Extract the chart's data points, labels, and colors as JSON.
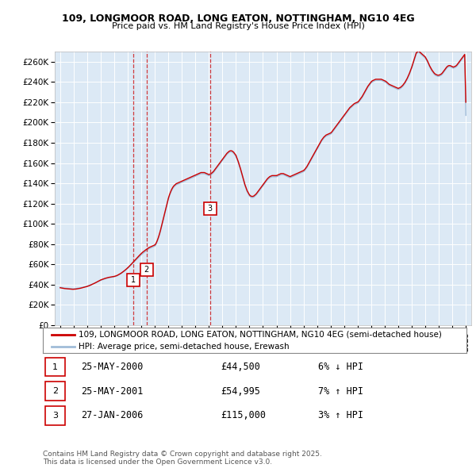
{
  "title1": "109, LONGMOOR ROAD, LONG EATON, NOTTINGHAM, NG10 4EG",
  "title2": "Price paid vs. HM Land Registry's House Price Index (HPI)",
  "ylim": [
    0,
    270000
  ],
  "yticks": [
    0,
    20000,
    40000,
    60000,
    80000,
    100000,
    120000,
    140000,
    160000,
    180000,
    200000,
    220000,
    240000,
    260000
  ],
  "ytick_labels": [
    "£0",
    "£20K",
    "£40K",
    "£60K",
    "£80K",
    "£100K",
    "£120K",
    "£140K",
    "£160K",
    "£180K",
    "£200K",
    "£220K",
    "£240K",
    "£260K"
  ],
  "xlim_start": 1994.6,
  "xlim_end": 2025.4,
  "bg_color": "#dce9f5",
  "grid_color": "#ffffff",
  "red_color": "#cc0000",
  "blue_color": "#a0bcd8",
  "sales": [
    {
      "year": 2000.38,
      "price": 44500,
      "label": "1"
    },
    {
      "year": 2001.38,
      "price": 54995,
      "label": "2"
    },
    {
      "year": 2006.07,
      "price": 115000,
      "label": "3"
    }
  ],
  "sale_dates": [
    "25-MAY-2000",
    "25-MAY-2001",
    "27-JAN-2006"
  ],
  "sale_prices": [
    "£44,500",
    "£54,995",
    "£115,000"
  ],
  "sale_pcts": [
    "6% ↓ HPI",
    "7% ↑ HPI",
    "3% ↑ HPI"
  ],
  "legend_line1": "109, LONGMOOR ROAD, LONG EATON, NOTTINGHAM, NG10 4EG (semi-detached house)",
  "legend_line2": "HPI: Average price, semi-detached house, Erewash",
  "footnote": "Contains HM Land Registry data © Crown copyright and database right 2025.\nThis data is licensed under the Open Government Licence v3.0.",
  "hpi_years": [
    1995.0,
    1995.083,
    1995.167,
    1995.25,
    1995.333,
    1995.417,
    1995.5,
    1995.583,
    1995.667,
    1995.75,
    1995.833,
    1995.917,
    1996.0,
    1996.083,
    1996.167,
    1996.25,
    1996.333,
    1996.417,
    1996.5,
    1996.583,
    1996.667,
    1996.75,
    1996.833,
    1996.917,
    1997.0,
    1997.083,
    1997.167,
    1997.25,
    1997.333,
    1997.417,
    1997.5,
    1997.583,
    1997.667,
    1997.75,
    1997.833,
    1997.917,
    1998.0,
    1998.083,
    1998.167,
    1998.25,
    1998.333,
    1998.417,
    1998.5,
    1998.583,
    1998.667,
    1998.75,
    1998.833,
    1998.917,
    1999.0,
    1999.083,
    1999.167,
    1999.25,
    1999.333,
    1999.417,
    1999.5,
    1999.583,
    1999.667,
    1999.75,
    1999.833,
    1999.917,
    2000.0,
    2000.083,
    2000.167,
    2000.25,
    2000.333,
    2000.417,
    2000.5,
    2000.583,
    2000.667,
    2000.75,
    2000.833,
    2000.917,
    2001.0,
    2001.083,
    2001.167,
    2001.25,
    2001.333,
    2001.417,
    2001.5,
    2001.583,
    2001.667,
    2001.75,
    2001.833,
    2001.917,
    2002.0,
    2002.083,
    2002.167,
    2002.25,
    2002.333,
    2002.417,
    2002.5,
    2002.583,
    2002.667,
    2002.75,
    2002.833,
    2002.917,
    2003.0,
    2003.083,
    2003.167,
    2003.25,
    2003.333,
    2003.417,
    2003.5,
    2003.583,
    2003.667,
    2003.75,
    2003.833,
    2003.917,
    2004.0,
    2004.083,
    2004.167,
    2004.25,
    2004.333,
    2004.417,
    2004.5,
    2004.583,
    2004.667,
    2004.75,
    2004.833,
    2004.917,
    2005.0,
    2005.083,
    2005.167,
    2005.25,
    2005.333,
    2005.417,
    2005.5,
    2005.583,
    2005.667,
    2005.75,
    2005.833,
    2005.917,
    2006.0,
    2006.083,
    2006.167,
    2006.25,
    2006.333,
    2006.417,
    2006.5,
    2006.583,
    2006.667,
    2006.75,
    2006.833,
    2006.917,
    2007.0,
    2007.083,
    2007.167,
    2007.25,
    2007.333,
    2007.417,
    2007.5,
    2007.583,
    2007.667,
    2007.75,
    2007.833,
    2007.917,
    2008.0,
    2008.083,
    2008.167,
    2008.25,
    2008.333,
    2008.417,
    2008.5,
    2008.583,
    2008.667,
    2008.75,
    2008.833,
    2008.917,
    2009.0,
    2009.083,
    2009.167,
    2009.25,
    2009.333,
    2009.417,
    2009.5,
    2009.583,
    2009.667,
    2009.75,
    2009.833,
    2009.917,
    2010.0,
    2010.083,
    2010.167,
    2010.25,
    2010.333,
    2010.417,
    2010.5,
    2010.583,
    2010.667,
    2010.75,
    2010.833,
    2010.917,
    2011.0,
    2011.083,
    2011.167,
    2011.25,
    2011.333,
    2011.417,
    2011.5,
    2011.583,
    2011.667,
    2011.75,
    2011.833,
    2011.917,
    2012.0,
    2012.083,
    2012.167,
    2012.25,
    2012.333,
    2012.417,
    2012.5,
    2012.583,
    2012.667,
    2012.75,
    2012.833,
    2012.917,
    2013.0,
    2013.083,
    2013.167,
    2013.25,
    2013.333,
    2013.417,
    2013.5,
    2013.583,
    2013.667,
    2013.75,
    2013.833,
    2013.917,
    2014.0,
    2014.083,
    2014.167,
    2014.25,
    2014.333,
    2014.417,
    2014.5,
    2014.583,
    2014.667,
    2014.75,
    2014.833,
    2014.917,
    2015.0,
    2015.083,
    2015.167,
    2015.25,
    2015.333,
    2015.417,
    2015.5,
    2015.583,
    2015.667,
    2015.75,
    2015.833,
    2015.917,
    2016.0,
    2016.083,
    2016.167,
    2016.25,
    2016.333,
    2016.417,
    2016.5,
    2016.583,
    2016.667,
    2016.75,
    2016.833,
    2016.917,
    2017.0,
    2017.083,
    2017.167,
    2017.25,
    2017.333,
    2017.417,
    2017.5,
    2017.583,
    2017.667,
    2017.75,
    2017.833,
    2017.917,
    2018.0,
    2018.083,
    2018.167,
    2018.25,
    2018.333,
    2018.417,
    2018.5,
    2018.583,
    2018.667,
    2018.75,
    2018.833,
    2018.917,
    2019.0,
    2019.083,
    2019.167,
    2019.25,
    2019.333,
    2019.417,
    2019.5,
    2019.583,
    2019.667,
    2019.75,
    2019.833,
    2019.917,
    2020.0,
    2020.083,
    2020.167,
    2020.25,
    2020.333,
    2020.417,
    2020.5,
    2020.583,
    2020.667,
    2020.75,
    2020.833,
    2020.917,
    2021.0,
    2021.083,
    2021.167,
    2021.25,
    2021.333,
    2021.417,
    2021.5,
    2021.583,
    2021.667,
    2021.75,
    2021.833,
    2021.917,
    2022.0,
    2022.083,
    2022.167,
    2022.25,
    2022.333,
    2022.417,
    2022.5,
    2022.583,
    2022.667,
    2022.75,
    2022.833,
    2022.917,
    2023.0,
    2023.083,
    2023.167,
    2023.25,
    2023.333,
    2023.417,
    2023.5,
    2023.583,
    2023.667,
    2023.75,
    2023.833,
    2023.917,
    2024.0,
    2024.083,
    2024.167,
    2024.25,
    2024.333,
    2024.417,
    2024.5,
    2024.583,
    2024.667,
    2024.75,
    2024.833,
    2024.917,
    2025.0
  ],
  "hpi_values": [
    37500,
    37300,
    37100,
    36900,
    36700,
    36600,
    36500,
    36400,
    36300,
    36200,
    36100,
    36000,
    36000,
    36100,
    36200,
    36400,
    36600,
    36800,
    37000,
    37200,
    37400,
    37700,
    38000,
    38300,
    38600,
    39000,
    39400,
    39900,
    40300,
    40800,
    41300,
    41800,
    42300,
    42800,
    43300,
    43800,
    44300,
    44700,
    45100,
    45500,
    45900,
    46200,
    46500,
    46800,
    47000,
    47200,
    47400,
    47600,
    47800,
    48100,
    48500,
    49000,
    49600,
    50200,
    50900,
    51700,
    52500,
    53400,
    54300,
    55200,
    56200,
    57300,
    58400,
    59500,
    60700,
    61800,
    63000,
    64100,
    65200,
    66300,
    67400,
    68500,
    69500,
    70500,
    71400,
    72300,
    73100,
    74000,
    74800,
    75600,
    76100,
    76600,
    77100,
    77600,
    78100,
    79500,
    82000,
    85000,
    88500,
    92500,
    97000,
    101500,
    106000,
    110500,
    115000,
    119500,
    124000,
    127500,
    130500,
    133000,
    135000,
    136500,
    137500,
    138500,
    139000,
    139500,
    140000,
    140500,
    141000,
    141500,
    142000,
    142500,
    143000,
    143500,
    144000,
    144500,
    145000,
    145500,
    146000,
    146500,
    147000,
    147500,
    148000,
    148500,
    149000,
    149500,
    149500,
    149500,
    149500,
    149000,
    148500,
    148000,
    147500,
    148000,
    148500,
    149500,
    150500,
    152000,
    153500,
    155000,
    156500,
    158000,
    159500,
    161000,
    162500,
    164000,
    165500,
    167000,
    168500,
    169500,
    170500,
    171000,
    171000,
    170500,
    169500,
    168000,
    166500,
    163500,
    160500,
    157000,
    153500,
    149500,
    145500,
    141500,
    137500,
    134500,
    131500,
    129500,
    127500,
    126500,
    126000,
    126000,
    126500,
    127500,
    128500,
    130000,
    131500,
    133000,
    134500,
    136000,
    137500,
    139000,
    140500,
    142000,
    143500,
    144500,
    145500,
    146000,
    146500,
    146500,
    146500,
    146500,
    146500,
    147000,
    147500,
    148000,
    148500,
    148500,
    148500,
    148000,
    147500,
    147000,
    146500,
    146000,
    145500,
    146000,
    146500,
    147000,
    147500,
    148000,
    148500,
    149000,
    149500,
    150000,
    150500,
    151000,
    151500,
    152500,
    154000,
    155500,
    157500,
    159500,
    161500,
    163500,
    165500,
    167500,
    169500,
    171500,
    173500,
    175500,
    177500,
    179500,
    181500,
    183000,
    184500,
    185500,
    186500,
    187000,
    187500,
    188000,
    188500,
    189500,
    191000,
    192500,
    194000,
    195500,
    197000,
    198500,
    200000,
    201500,
    203000,
    204500,
    206000,
    207500,
    209000,
    210500,
    212000,
    213500,
    214500,
    215500,
    216500,
    217500,
    218000,
    218500,
    219000,
    220000,
    221500,
    223000,
    224500,
    226500,
    228500,
    230500,
    232500,
    234500,
    236000,
    237500,
    239000,
    240000,
    240500,
    241000,
    241500,
    241500,
    241500,
    241500,
    241500,
    241500,
    241000,
    240500,
    240000,
    239500,
    238500,
    237500,
    236500,
    236000,
    235500,
    235000,
    234500,
    234000,
    233500,
    233000,
    232500,
    233000,
    233500,
    234500,
    235500,
    237000,
    238500,
    240500,
    242500,
    245000,
    247500,
    250500,
    253500,
    257000,
    260500,
    264000,
    267500,
    268500,
    269500,
    268500,
    267500,
    266500,
    265500,
    264500,
    263500,
    261500,
    259500,
    257000,
    254500,
    252500,
    250500,
    249000,
    247500,
    246500,
    246000,
    245500,
    245500,
    246000,
    246500,
    247500,
    249000,
    250500,
    252000,
    253500,
    254500,
    255000,
    255000,
    254500,
    254000,
    253500,
    254000,
    254500,
    255500,
    257000,
    258500,
    260000,
    261500,
    263000,
    264500,
    266000,
    207000
  ],
  "red_values": [
    37000,
    36800,
    36600,
    36400,
    36200,
    36100,
    36000,
    35900,
    35800,
    35700,
    35600,
    35500,
    35500,
    35600,
    35700,
    35900,
    36100,
    36300,
    36500,
    36800,
    37100,
    37400,
    37700,
    38000,
    38300,
    38700,
    39100,
    39600,
    40100,
    40600,
    41100,
    41700,
    42300,
    42900,
    43500,
    44100,
    44700,
    45100,
    45500,
    45900,
    46300,
    46600,
    46900,
    47200,
    47400,
    47600,
    47800,
    48000,
    48200,
    48500,
    48900,
    49400,
    50000,
    50600,
    51300,
    52100,
    52900,
    53800,
    54700,
    55700,
    56700,
    57800,
    58900,
    60100,
    61300,
    62500,
    63700,
    64900,
    66100,
    67300,
    68500,
    69700,
    70800,
    71800,
    72700,
    73600,
    74400,
    75200,
    76000,
    76700,
    77200,
    77700,
    78200,
    78700,
    79200,
    80600,
    83100,
    86100,
    89600,
    93600,
    98100,
    102600,
    107100,
    111600,
    116100,
    120600,
    125100,
    128600,
    131600,
    134100,
    136100,
    137600,
    138600,
    139600,
    140100,
    140600,
    141100,
    141600,
    142100,
    142600,
    143100,
    143600,
    144100,
    144600,
    145100,
    145600,
    146100,
    146600,
    147100,
    147600,
    148100,
    148600,
    149100,
    149600,
    150100,
    150600,
    150600,
    150600,
    150600,
    150100,
    149600,
    149100,
    148600,
    149100,
    149600,
    150600,
    151600,
    153100,
    154600,
    156100,
    157600,
    159100,
    160600,
    162100,
    163600,
    165100,
    166600,
    168100,
    169600,
    170600,
    171600,
    172100,
    172100,
    171600,
    170600,
    169100,
    167600,
    164600,
    161600,
    158100,
    154600,
    150600,
    146600,
    142600,
    138600,
    135600,
    132600,
    130600,
    128600,
    127600,
    127100,
    127100,
    127600,
    128600,
    129600,
    131100,
    132600,
    134100,
    135600,
    137100,
    138600,
    140100,
    141600,
    143100,
    144600,
    145600,
    146600,
    147100,
    147600,
    147600,
    147600,
    147600,
    147600,
    148100,
    148600,
    149100,
    149600,
    149600,
    149600,
    149100,
    148600,
    148100,
    147600,
    147100,
    146600,
    147100,
    147600,
    148100,
    148600,
    149100,
    149600,
    150100,
    150600,
    151100,
    151600,
    152100,
    152600,
    153600,
    155100,
    156600,
    158600,
    160600,
    162600,
    164600,
    166600,
    168600,
    170600,
    172600,
    174600,
    176600,
    178600,
    180600,
    182600,
    184100,
    185600,
    186600,
    187600,
    188100,
    188600,
    189100,
    189600,
    190600,
    192100,
    193600,
    195100,
    196600,
    198100,
    199600,
    201100,
    202600,
    204100,
    205600,
    207100,
    208600,
    210100,
    211600,
    213100,
    214600,
    215600,
    216600,
    217600,
    218600,
    219100,
    219600,
    220100,
    221100,
    222600,
    224100,
    225600,
    227600,
    229600,
    231600,
    233600,
    235600,
    237100,
    238600,
    240100,
    241100,
    241600,
    242100,
    242600,
    242600,
    242600,
    242600,
    242600,
    242600,
    242100,
    241600,
    241100,
    240600,
    239600,
    238600,
    237600,
    237100,
    236600,
    236100,
    235600,
    235100,
    234600,
    234100,
    233600,
    234100,
    234600,
    235600,
    236600,
    238100,
    239600,
    241600,
    243600,
    246100,
    248600,
    251600,
    254600,
    258100,
    261600,
    265100,
    268600,
    269600,
    270600,
    269600,
    268600,
    267600,
    266600,
    265600,
    264600,
    262600,
    260600,
    258100,
    255600,
    253600,
    251600,
    250100,
    248600,
    247600,
    247100,
    246600,
    246600,
    247100,
    247600,
    248600,
    250100,
    251600,
    253100,
    254600,
    255600,
    256100,
    256100,
    255600,
    255100,
    254600,
    255100,
    255600,
    256600,
    258100,
    259600,
    261100,
    262600,
    264100,
    265600,
    267100,
    220000
  ]
}
